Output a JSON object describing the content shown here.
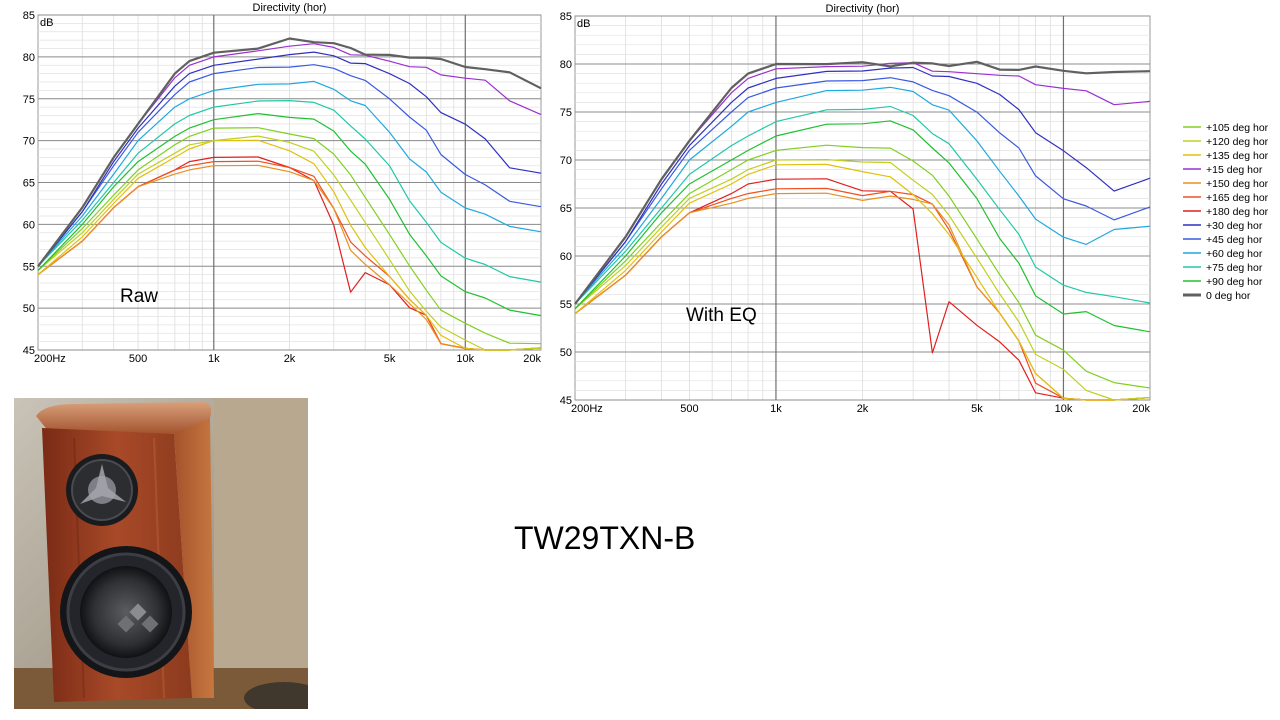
{
  "chart_data": [
    {
      "type": "line",
      "title": "Directivity (hor)",
      "ylabel": "dB",
      "annotation": "Raw",
      "xscale": "log",
      "xlim": [
        200,
        20000
      ],
      "ylim": [
        45,
        85
      ],
      "xticks": [
        {
          "v": 200,
          "label": "200Hz"
        },
        {
          "v": 500,
          "label": "500"
        },
        {
          "v": 1000,
          "label": "1k"
        },
        {
          "v": 2000,
          "label": "2k"
        },
        {
          "v": 5000,
          "label": "5k"
        },
        {
          "v": 10000,
          "label": "10k"
        },
        {
          "v": 20000,
          "label": "20k"
        }
      ],
      "yticks": [
        45,
        50,
        55,
        60,
        65,
        70,
        75,
        80,
        85
      ],
      "grid": true,
      "x": [
        200,
        300,
        400,
        500,
        700,
        800,
        1000,
        1500,
        2000,
        2500,
        3000,
        3500,
        4000,
        5000,
        6000,
        7000,
        8000,
        10000,
        12000,
        15000,
        20000
      ],
      "series": [
        {
          "name": "0 deg hor",
          "color": "#606060",
          "values": [
            55,
            62,
            68,
            72,
            78,
            79.5,
            80.5,
            81,
            82,
            82,
            81.5,
            81,
            80.5,
            80,
            80,
            80,
            79.5,
            79,
            78.5,
            78,
            76.5
          ]
        },
        {
          "name": "+15 deg hor",
          "color": "#9a30d0",
          "values": [
            55,
            62,
            68,
            72,
            77.5,
            79,
            80,
            80.5,
            81.5,
            81.5,
            81,
            80.5,
            80,
            79.5,
            79,
            78.5,
            78,
            77.5,
            77,
            75,
            73
          ]
        },
        {
          "name": "+30 deg hor",
          "color": "#3030c0",
          "values": [
            55,
            61.5,
            67.5,
            71.5,
            76.5,
            78,
            79,
            79.5,
            80.5,
            80.5,
            80,
            79.5,
            79,
            78,
            77,
            75,
            73.5,
            72,
            70,
            67,
            66
          ]
        },
        {
          "name": "+45 deg hor",
          "color": "#3a5ae0",
          "values": [
            55,
            61.5,
            67,
            71,
            75.5,
            77,
            78,
            78.5,
            79,
            79,
            78.5,
            78,
            77,
            75,
            73,
            71,
            68.5,
            66,
            64.5,
            63,
            62
          ]
        },
        {
          "name": "+60 deg hor",
          "color": "#20a8e0",
          "values": [
            55,
            61,
            66,
            70,
            74,
            75,
            76,
            76.5,
            77,
            77,
            76,
            75,
            74,
            71,
            68,
            66,
            64,
            62,
            61,
            60,
            59
          ]
        },
        {
          "name": "+75 deg hor",
          "color": "#20c8a8",
          "values": [
            55,
            60.5,
            65,
            68.5,
            72,
            73,
            74,
            74.5,
            75,
            74.5,
            73.5,
            72,
            70,
            67,
            63,
            60,
            58,
            56,
            55,
            54,
            53
          ]
        },
        {
          "name": "+90 deg hor",
          "color": "#20c030",
          "values": [
            54.5,
            60,
            64.5,
            67.5,
            70.5,
            71.5,
            72.5,
            73,
            73,
            72.5,
            71,
            69,
            67,
            63,
            59,
            56,
            54,
            52,
            51,
            50,
            49
          ]
        },
        {
          "name": "+105 deg hor",
          "color": "#80d020",
          "values": [
            54.5,
            59.5,
            63.5,
            66.5,
            69.5,
            70.5,
            71.5,
            71.5,
            71,
            70,
            68.5,
            66,
            63,
            59,
            55,
            52,
            50,
            48,
            47,
            46,
            45.5
          ]
        },
        {
          "name": "+120 deg hor",
          "color": "#c0d020",
          "values": [
            54.5,
            59,
            63,
            66,
            68.5,
            69.5,
            70,
            70.5,
            70,
            68.5,
            66,
            63,
            60,
            56,
            52,
            49.5,
            48,
            46,
            45,
            45,
            45
          ]
        },
        {
          "name": "+135 deg hor",
          "color": "#e0c010",
          "values": [
            54,
            58.5,
            62.5,
            65.5,
            68,
            69,
            70,
            70,
            69,
            67,
            64,
            60,
            57,
            54,
            51,
            49,
            47,
            45,
            45,
            45,
            45
          ]
        },
        {
          "name": "+150 deg hor",
          "color": "#e89020",
          "values": [
            54,
            58,
            62,
            64.5,
            66,
            66.5,
            67,
            67,
            66.5,
            65,
            62,
            57,
            55,
            53,
            50.5,
            48.5,
            46,
            45,
            45,
            45,
            45
          ]
        },
        {
          "name": "+165 deg hor",
          "color": "#f05020",
          "values": [
            54,
            58,
            62,
            64.5,
            66.5,
            67,
            67.5,
            67.5,
            67,
            65.5,
            62,
            58,
            56,
            54,
            51,
            49,
            46,
            45,
            45,
            45,
            45
          ]
        },
        {
          "name": "+180 deg hor",
          "color": "#e02020",
          "values": [
            54,
            58,
            62,
            64.5,
            66.5,
            67.5,
            68,
            68,
            67,
            65,
            60,
            52,
            54,
            53,
            50,
            49,
            46,
            45,
            45,
            45,
            45
          ]
        }
      ]
    },
    {
      "type": "line",
      "title": "Directivity (hor)",
      "ylabel": "dB",
      "annotation": "With EQ",
      "xscale": "log",
      "xlim": [
        200,
        20000
      ],
      "ylim": [
        45,
        85
      ],
      "xticks": [
        {
          "v": 200,
          "label": "200Hz"
        },
        {
          "v": 500,
          "label": "500"
        },
        {
          "v": 1000,
          "label": "1k"
        },
        {
          "v": 2000,
          "label": "2k"
        },
        {
          "v": 5000,
          "label": "5k"
        },
        {
          "v": 10000,
          "label": "10k"
        },
        {
          "v": 20000,
          "label": "20k"
        }
      ],
      "yticks": [
        45,
        50,
        55,
        60,
        65,
        70,
        75,
        80,
        85
      ],
      "grid": true,
      "x": [
        200,
        300,
        400,
        500,
        700,
        800,
        1000,
        1500,
        2000,
        2500,
        3000,
        3500,
        4000,
        5000,
        6000,
        7000,
        8000,
        10000,
        12000,
        15000,
        20000
      ],
      "series": [
        {
          "name": "0 deg hor",
          "color": "#606060",
          "values": [
            55,
            62,
            68,
            72,
            77.5,
            79,
            80,
            80,
            80,
            80,
            80,
            80,
            80,
            80,
            79.5,
            79.5,
            79.5,
            79.5,
            79,
            79,
            79.5
          ]
        },
        {
          "name": "+15 deg hor",
          "color": "#9a30d0",
          "values": [
            55,
            62,
            68,
            72,
            77,
            78.5,
            79.5,
            79.5,
            80,
            80,
            80,
            79.5,
            79,
            79,
            79,
            78.5,
            78,
            77.5,
            77,
            76,
            76
          ]
        },
        {
          "name": "+30 deg hor",
          "color": "#3030c0",
          "values": [
            55,
            61.5,
            67.5,
            71.5,
            76,
            77.5,
            78.5,
            79,
            79.5,
            79.5,
            79.5,
            79,
            78.5,
            78,
            77,
            75,
            73,
            71,
            69,
            67,
            68
          ]
        },
        {
          "name": "+45 deg hor",
          "color": "#3a5ae0",
          "values": [
            55,
            61.5,
            67,
            71,
            75,
            76.5,
            77.5,
            78,
            78.5,
            78.5,
            78,
            77.5,
            76.5,
            75,
            73,
            71,
            68.5,
            66,
            65,
            64,
            65
          ]
        },
        {
          "name": "+60 deg hor",
          "color": "#20a8e0",
          "values": [
            55,
            61,
            66,
            70,
            73.5,
            75,
            76,
            77,
            77.5,
            77.5,
            77,
            76,
            75,
            72,
            69,
            66,
            64,
            62,
            61,
            63,
            63
          ]
        },
        {
          "name": "+75 deg hor",
          "color": "#20c8a8",
          "values": [
            55,
            60.5,
            65,
            68.5,
            71.5,
            72.5,
            74,
            75,
            75.5,
            75.5,
            74.5,
            73,
            71.5,
            68,
            65,
            62,
            59,
            57,
            56,
            56,
            55
          ]
        },
        {
          "name": "+90 deg hor",
          "color": "#20c030",
          "values": [
            54.5,
            60,
            64.5,
            67.5,
            70,
            71,
            72.5,
            73.5,
            74,
            74,
            73,
            71.5,
            69.5,
            66,
            62,
            59,
            56,
            54,
            54,
            53,
            52
          ]
        },
        {
          "name": "+105 deg hor",
          "color": "#80d020",
          "values": [
            54.5,
            59.5,
            63.5,
            66.5,
            69,
            70,
            71,
            71.5,
            71.5,
            71,
            70,
            68.5,
            66,
            62,
            58,
            55,
            52,
            50,
            48,
            47,
            46
          ]
        },
        {
          "name": "+120 deg hor",
          "color": "#c0d020",
          "values": [
            54.5,
            59,
            63,
            66,
            68,
            69,
            70,
            70,
            70,
            69.5,
            68,
            66.5,
            64,
            60,
            56,
            53,
            50,
            48,
            46,
            45,
            45
          ]
        },
        {
          "name": "+135 deg hor",
          "color": "#e0c010",
          "values": [
            54,
            58.5,
            62.5,
            65.5,
            67.5,
            68.5,
            69.5,
            69.5,
            69,
            68,
            66.5,
            64.5,
            62,
            58,
            54,
            51,
            48,
            45,
            45,
            45,
            45
          ]
        },
        {
          "name": "+150 deg hor",
          "color": "#e89020",
          "values": [
            54,
            58,
            62,
            64.5,
            65.5,
            66,
            66.5,
            66.5,
            66,
            66,
            66,
            65.5,
            63,
            57,
            54,
            51,
            48,
            45,
            45,
            45,
            45
          ]
        },
        {
          "name": "+165 deg hor",
          "color": "#f05020",
          "values": [
            54,
            58,
            62,
            64.5,
            66,
            66.5,
            67,
            67,
            66.5,
            66.5,
            66.5,
            65.5,
            62.5,
            57,
            54,
            51,
            47,
            45,
            45,
            45,
            45
          ]
        },
        {
          "name": "+180 deg hor",
          "color": "#e02020",
          "values": [
            54,
            58,
            62,
            64.5,
            66.5,
            67.5,
            68,
            68,
            67,
            66.5,
            65,
            50,
            55,
            53,
            51,
            49,
            46,
            45,
            45,
            45,
            45
          ]
        }
      ]
    }
  ],
  "legend": [
    {
      "label": "+105 deg hor",
      "color": "#80d020"
    },
    {
      "label": "+120 deg hor",
      "color": "#c0d020"
    },
    {
      "label": "+135 deg hor",
      "color": "#e0c010"
    },
    {
      "label": "+15 deg hor",
      "color": "#9a30d0"
    },
    {
      "label": "+150 deg hor",
      "color": "#e89020"
    },
    {
      "label": "+165 deg hor",
      "color": "#f05020"
    },
    {
      "label": "+180 deg hor",
      "color": "#e02020"
    },
    {
      "label": "+30 deg hor",
      "color": "#3030c0"
    },
    {
      "label": "+45 deg hor",
      "color": "#3a5ae0"
    },
    {
      "label": "+60 deg hor",
      "color": "#20a8e0"
    },
    {
      "label": "+75 deg hor",
      "color": "#20c8a8"
    },
    {
      "label": "+90 deg hor",
      "color": "#20c030"
    },
    {
      "label": "0 deg hor",
      "color": "#606060"
    }
  ],
  "model_name": "TW29TXN-B"
}
